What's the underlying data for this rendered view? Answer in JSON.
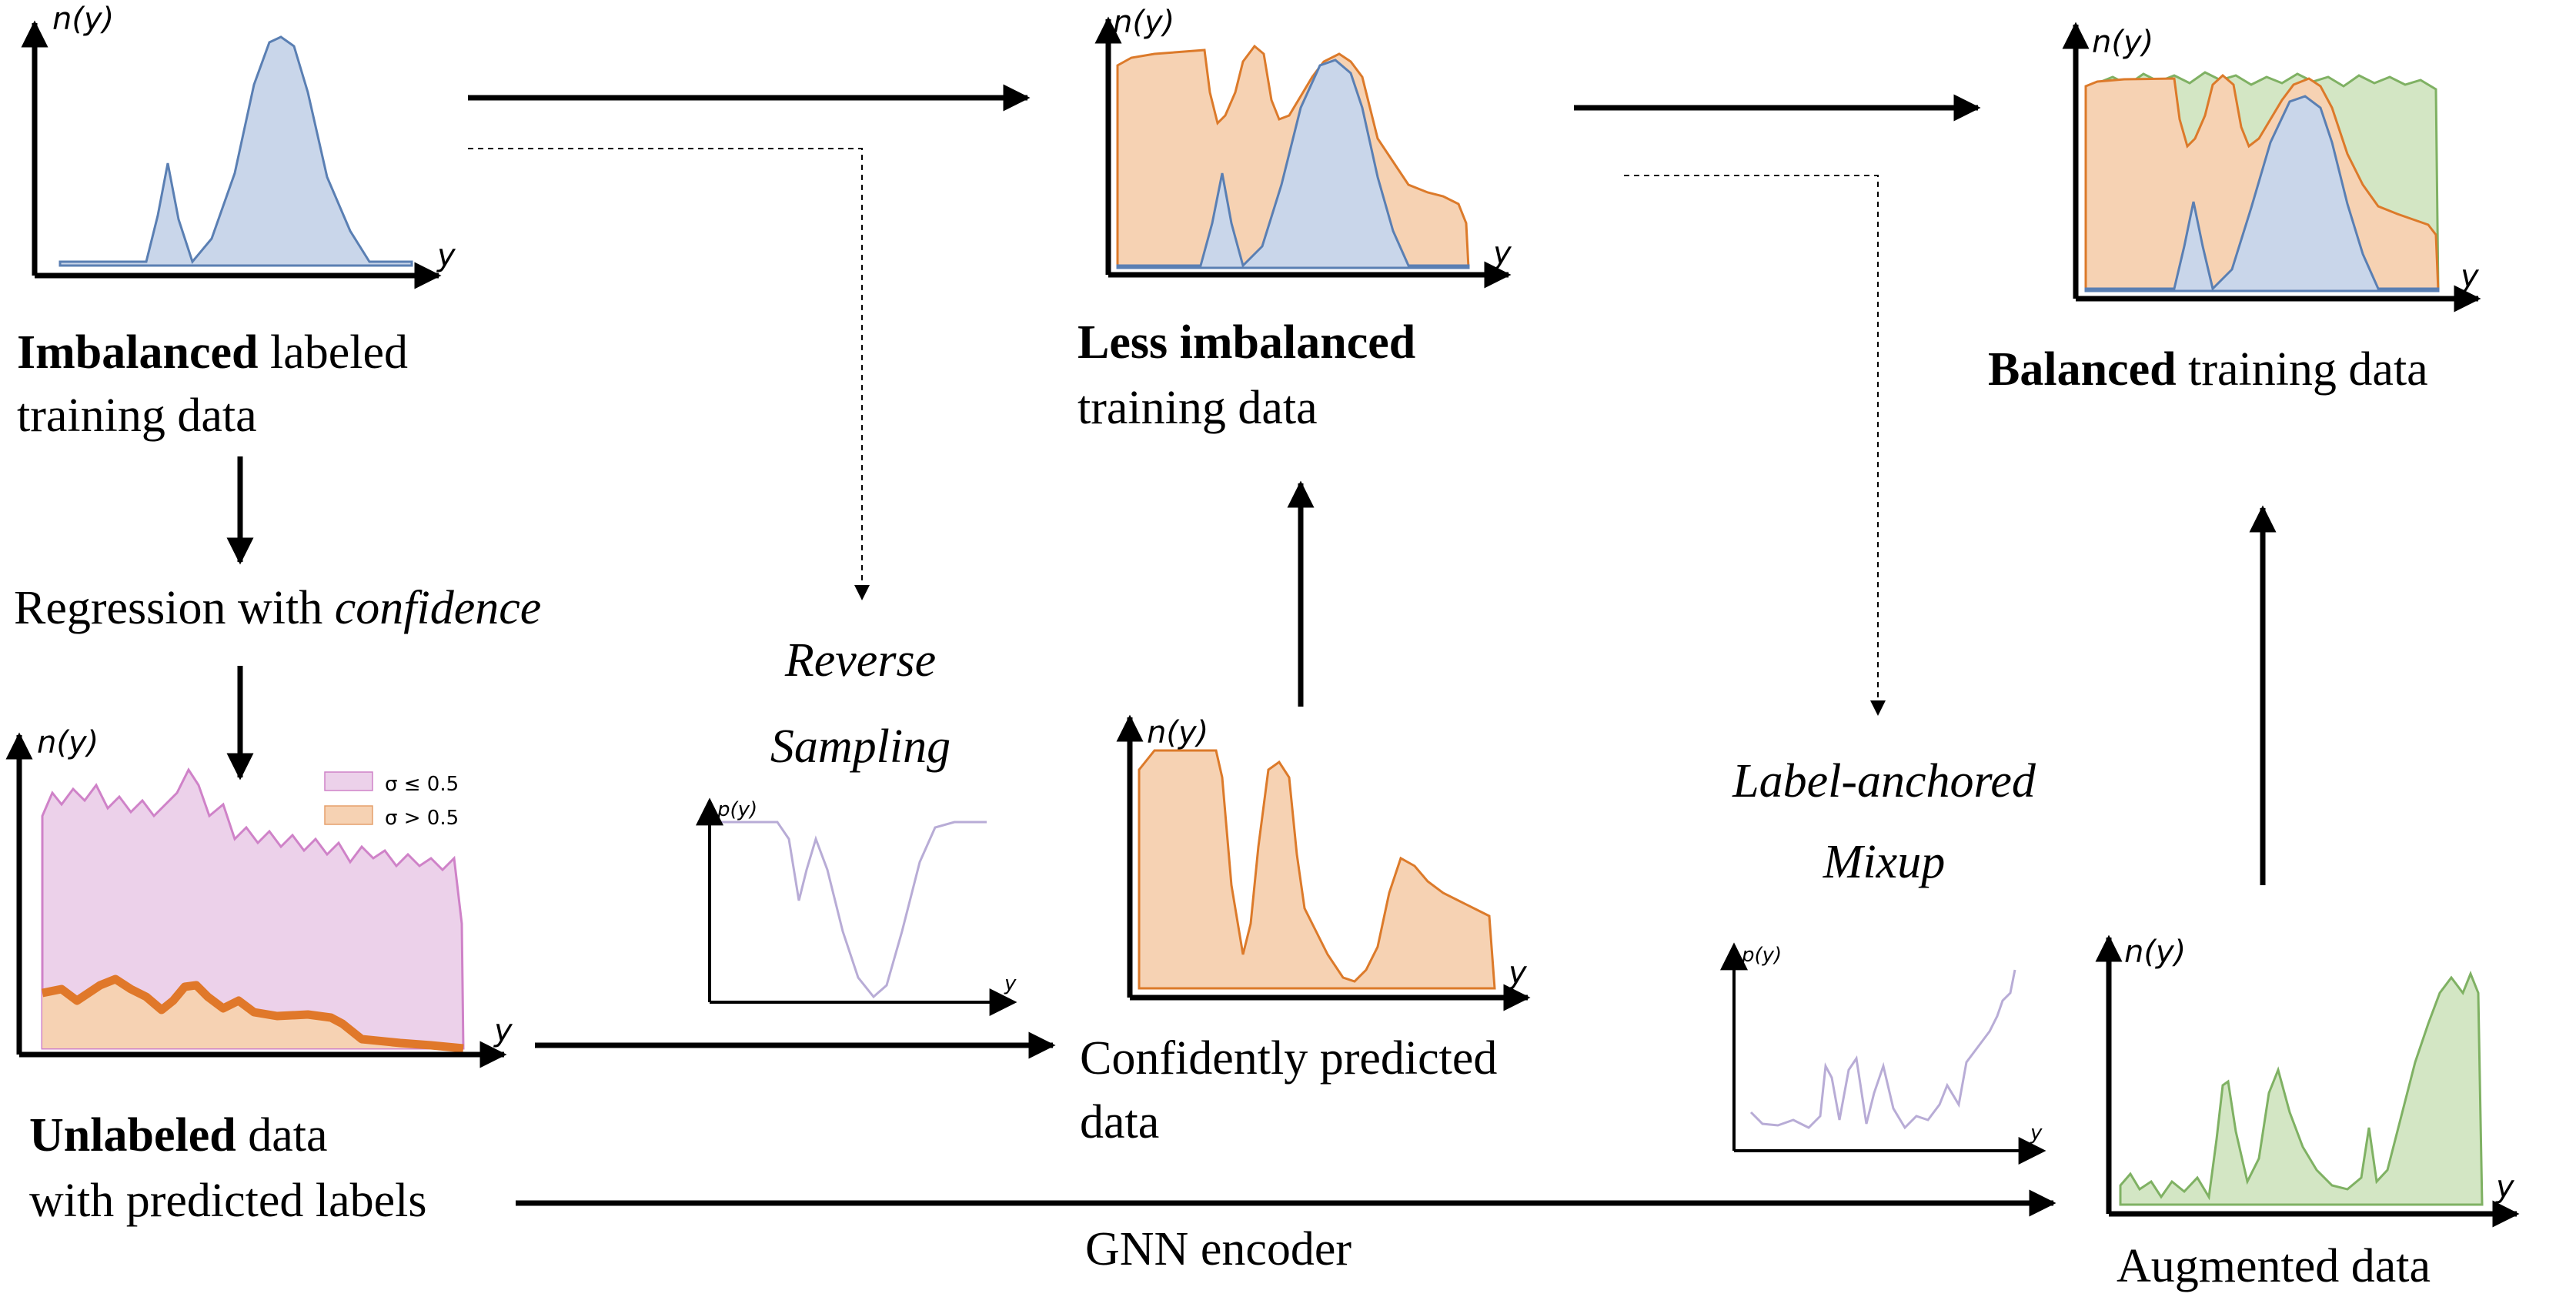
{
  "colors": {
    "blue_fill": "#c9d6ea",
    "blue_line": "#5a7fb3",
    "orange_fill": "#f6d2b3",
    "orange_line": "#dc7a2a",
    "orange_thick": "#e0782a",
    "pink_fill": "#ecd1ea",
    "pink_line": "#cf82c8",
    "green_fill": "#d3e6c4",
    "green_line": "#7fb163",
    "purple_line": "#b8acd6"
  },
  "axis": {
    "ny": "n(y)",
    "py": "p(y)",
    "y": "y"
  },
  "nodes": {
    "imbalanced": {
      "bold": "Imbalanced",
      "rest": "labeled",
      "line2": "training data"
    },
    "regression": {
      "text": "Regression with ",
      "em": "confidence"
    },
    "unlabeled": {
      "bold": "Unlabeled",
      "rest": "data",
      "line2": "with predicted labels"
    },
    "less": {
      "bold": "Less imbalanced",
      "line2": "training data"
    },
    "confident": {
      "line1": "Confidently predicted",
      "line2": "data"
    },
    "balanced": {
      "bold": "Balanced",
      "rest": "training data"
    },
    "augmented": {
      "text": "Augmented data"
    }
  },
  "operations": {
    "reverse": {
      "line1": "Reverse",
      "line2": "Sampling"
    },
    "mixup": {
      "line1": "Label-anchored",
      "line2": "Mixup"
    },
    "gnn": "GNN encoder"
  },
  "legend": [
    {
      "label": "σ ≤ 0.5",
      "color": "#ecd1ea"
    },
    {
      "label": "σ > 0.5",
      "color": "#f6d2b3"
    }
  ]
}
